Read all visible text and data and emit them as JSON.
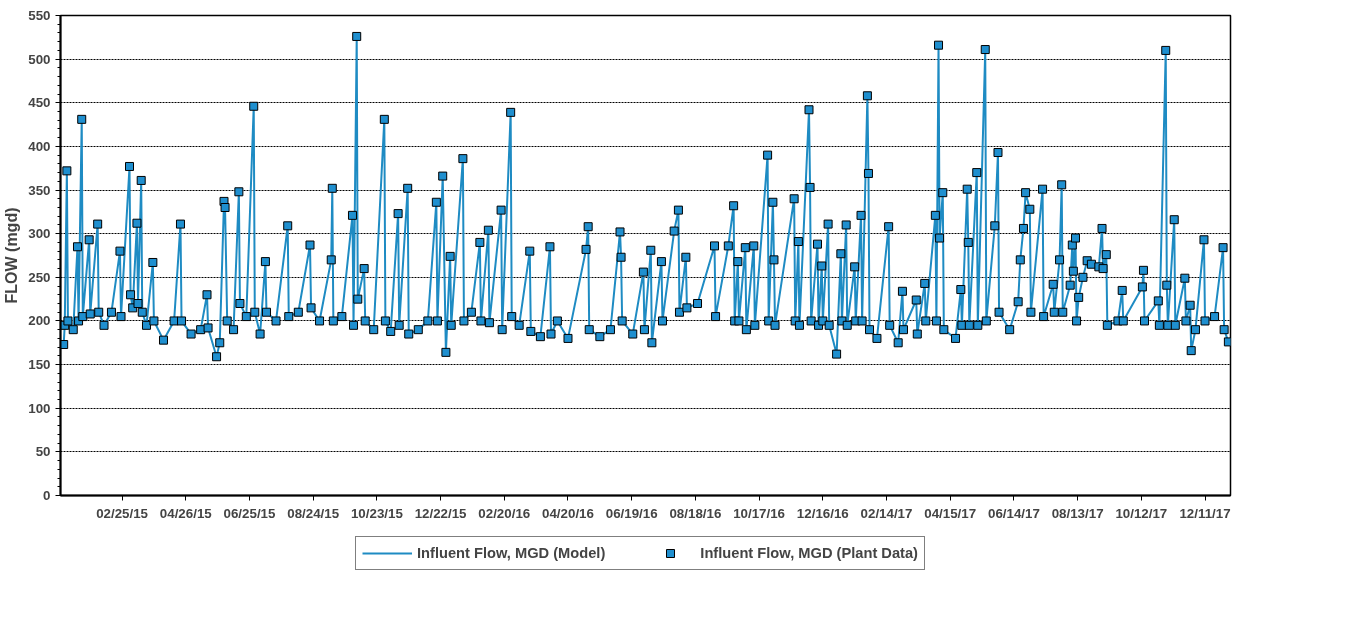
{
  "chart_data": {
    "type": "line",
    "ylabel": "FLOW (mgd)",
    "x": [
      "2015-01-01",
      "2015-01-02",
      "2015-01-04",
      "2015-01-05",
      "2015-01-10",
      "2015-01-14",
      "2015-01-15",
      "2015-01-18",
      "2015-01-19",
      "2015-01-25",
      "2015-01-26",
      "2015-02-02",
      "2015-02-03",
      "2015-02-08",
      "2015-02-15",
      "2015-02-23",
      "2015-02-24",
      "2015-03-04",
      "2015-03-05",
      "2015-03-07",
      "2015-03-11",
      "2015-03-12",
      "2015-03-15",
      "2015-03-16",
      "2015-03-20",
      "2015-03-26",
      "2015-03-27",
      "2015-04-05",
      "2015-04-15",
      "2015-04-21",
      "2015-04-22",
      "2015-05-01",
      "2015-05-10",
      "2015-05-16",
      "2015-05-17",
      "2015-05-25",
      "2015-05-28",
      "2015-06-01",
      "2015-06-02",
      "2015-06-04",
      "2015-06-10",
      "2015-06-15",
      "2015-06-16",
      "2015-06-22",
      "2015-06-29",
      "2015-06-30",
      "2015-07-05",
      "2015-07-10",
      "2015-07-11",
      "2015-07-20",
      "2015-07-31",
      "2015-08-01",
      "2015-08-10",
      "2015-08-21",
      "2015-08-22",
      "2015-08-30",
      "2015-09-10",
      "2015-09-11",
      "2015-09-12",
      "2015-09-20",
      "2015-09-30",
      "2015-10-01",
      "2015-10-04",
      "2015-10-05",
      "2015-10-11",
      "2015-10-12",
      "2015-10-20",
      "2015-10-30",
      "2015-10-31",
      "2015-11-05",
      "2015-11-12",
      "2015-11-13",
      "2015-11-21",
      "2015-11-22",
      "2015-12-01",
      "2015-12-10",
      "2015-12-18",
      "2015-12-19",
      "2015-12-24",
      "2015-12-27",
      "2015-12-31",
      "2016-01-01",
      "2016-01-12",
      "2016-01-13",
      "2016-01-20",
      "2016-01-28",
      "2016-01-29",
      "2016-02-05",
      "2016-02-06",
      "2016-02-17",
      "2016-02-18",
      "2016-02-26",
      "2016-02-27",
      "2016-03-05",
      "2016-03-15",
      "2016-03-16",
      "2016-03-25",
      "2016-04-03",
      "2016-04-04",
      "2016-04-10",
      "2016-04-20",
      "2016-05-07",
      "2016-05-09",
      "2016-05-10",
      "2016-05-20",
      "2016-05-30",
      "2016-06-08",
      "2016-06-09",
      "2016-06-10",
      "2016-06-20",
      "2016-06-30",
      "2016-07-01",
      "2016-07-07",
      "2016-07-08",
      "2016-07-17",
      "2016-07-18",
      "2016-07-29",
      "2016-08-02",
      "2016-08-03",
      "2016-08-09",
      "2016-08-10",
      "2016-08-20",
      "2016-09-05",
      "2016-09-06",
      "2016-09-18",
      "2016-09-23",
      "2016-09-24",
      "2016-09-27",
      "2016-09-28",
      "2016-10-04",
      "2016-10-05",
      "2016-10-12",
      "2016-10-13",
      "2016-10-25",
      "2016-10-26",
      "2016-10-30",
      "2016-10-31",
      "2016-11-01",
      "2016-11-19",
      "2016-11-20",
      "2016-11-23",
      "2016-11-24",
      "2016-12-03",
      "2016-12-04",
      "2016-12-05",
      "2016-12-11",
      "2016-12-12",
      "2016-12-15",
      "2016-12-16",
      "2016-12-21",
      "2016-12-22",
      "2016-12-29",
      "2017-01-02",
      "2017-01-03",
      "2017-01-07",
      "2017-01-08",
      "2017-01-15",
      "2017-01-16",
      "2017-01-21",
      "2017-01-22",
      "2017-01-27",
      "2017-01-28",
      "2017-01-29",
      "2017-02-05",
      "2017-02-16",
      "2017-02-17",
      "2017-02-25",
      "2017-03-01",
      "2017-03-02",
      "2017-03-14",
      "2017-03-15",
      "2017-03-22",
      "2017-03-23",
      "2017-04-01",
      "2017-04-02",
      "2017-04-04",
      "2017-04-05",
      "2017-04-08",
      "2017-04-09",
      "2017-04-20",
      "2017-04-25",
      "2017-04-26",
      "2017-05-01",
      "2017-05-02",
      "2017-05-03",
      "2017-05-10",
      "2017-05-11",
      "2017-05-18",
      "2017-05-19",
      "2017-05-27",
      "2017-05-30",
      "2017-05-31",
      "2017-06-10",
      "2017-06-18",
      "2017-06-20",
      "2017-06-23",
      "2017-06-25",
      "2017-06-29",
      "2017-06-30",
      "2017-07-11",
      "2017-07-12",
      "2017-07-21",
      "2017-07-22",
      "2017-07-27",
      "2017-07-29",
      "2017-07-30",
      "2017-08-06",
      "2017-08-08",
      "2017-08-09",
      "2017-08-11",
      "2017-08-12",
      "2017-08-14",
      "2017-08-18",
      "2017-08-22",
      "2017-08-26",
      "2017-09-02",
      "2017-09-05",
      "2017-09-06",
      "2017-09-09",
      "2017-09-10",
      "2017-09-20",
      "2017-09-24",
      "2017-09-25",
      "2017-10-13",
      "2017-10-14",
      "2017-10-15",
      "2017-10-28",
      "2017-10-29",
      "2017-11-04",
      "2017-11-05",
      "2017-11-06",
      "2017-11-12",
      "2017-11-13",
      "2017-11-22",
      "2017-11-23",
      "2017-11-27",
      "2017-11-28",
      "2017-12-02",
      "2017-12-10",
      "2017-12-11",
      "2017-12-20",
      "2017-12-28",
      "2017-12-29",
      "2018-01-02"
    ],
    "series": [
      {
        "name": "Influent Flow, MGD (Model)",
        "type": "line",
        "color": "#1e8bc3",
        "values": [
          173,
          195,
          372,
          200,
          190,
          285,
          200,
          431,
          205,
          293,
          208,
          311,
          210,
          195,
          210,
          280,
          205,
          377,
          230,
          215,
          312,
          220,
          361,
          210,
          195,
          267,
          200,
          178,
          200,
          311,
          200,
          185,
          190,
          230,
          192,
          159,
          175,
          337,
          330,
          200,
          190,
          348,
          220,
          205,
          446,
          210,
          185,
          268,
          210,
          200,
          309,
          205,
          210,
          287,
          215,
          200,
          270,
          352,
          200,
          205,
          321,
          195,
          526,
          225,
          260,
          200,
          190,
          431,
          200,
          188,
          323,
          195,
          352,
          185,
          190,
          200,
          336,
          200,
          366,
          164,
          274,
          195,
          386,
          200,
          210,
          290,
          200,
          304,
          198,
          327,
          190,
          439,
          205,
          195,
          280,
          188,
          182,
          285,
          185,
          200,
          180,
          282,
          308,
          190,
          182,
          190,
          302,
          273,
          200,
          185,
          256,
          190,
          281,
          175,
          268,
          200,
          303,
          327,
          210,
          273,
          215,
          220,
          286,
          205,
          286,
          332,
          200,
          268,
          200,
          284,
          190,
          286,
          195,
          390,
          200,
          336,
          270,
          195,
          340,
          200,
          291,
          195,
          442,
          353,
          200,
          288,
          195,
          263,
          200,
          311,
          195,
          162,
          277,
          200,
          310,
          195,
          262,
          200,
          321,
          200,
          458,
          369,
          190,
          180,
          308,
          195,
          175,
          234,
          190,
          224,
          185,
          243,
          200,
          321,
          200,
          516,
          295,
          347,
          190,
          180,
          236,
          195,
          351,
          290,
          195,
          370,
          195,
          511,
          200,
          309,
          393,
          210,
          190,
          222,
          270,
          306,
          347,
          328,
          210,
          351,
          205,
          242,
          210,
          270,
          356,
          210,
          241,
          287,
          257,
          295,
          200,
          227,
          250,
          269,
          265,
          262,
          306,
          260,
          276,
          195,
          200,
          235,
          200,
          239,
          258,
          200,
          223,
          195,
          510,
          241,
          195,
          316,
          195,
          249,
          200,
          218,
          166,
          190,
          293,
          200,
          205,
          284,
          190,
          176
        ]
      },
      {
        "name": "Influent Flow, MGD (Plant Data)",
        "type": "scatter",
        "marker": "square",
        "color": "#1f8fcf",
        "values": [
          173,
          195,
          372,
          200,
          190,
          285,
          200,
          431,
          205,
          293,
          208,
          311,
          210,
          195,
          210,
          280,
          205,
          377,
          230,
          215,
          312,
          220,
          361,
          210,
          195,
          267,
          200,
          178,
          200,
          311,
          200,
          185,
          190,
          230,
          192,
          159,
          175,
          337,
          330,
          200,
          190,
          348,
          220,
          205,
          446,
          210,
          185,
          268,
          210,
          200,
          309,
          205,
          210,
          287,
          215,
          200,
          270,
          352,
          200,
          205,
          321,
          195,
          526,
          225,
          260,
          200,
          190,
          431,
          200,
          188,
          323,
          195,
          352,
          185,
          190,
          200,
          336,
          200,
          366,
          164,
          274,
          195,
          386,
          200,
          210,
          290,
          200,
          304,
          198,
          327,
          190,
          439,
          205,
          195,
          280,
          188,
          182,
          285,
          185,
          200,
          180,
          282,
          308,
          190,
          182,
          190,
          302,
          273,
          200,
          185,
          256,
          190,
          281,
          175,
          268,
          200,
          303,
          327,
          210,
          273,
          215,
          220,
          286,
          205,
          286,
          332,
          200,
          268,
          200,
          284,
          190,
          286,
          195,
          390,
          200,
          336,
          270,
          195,
          340,
          200,
          291,
          195,
          442,
          353,
          200,
          288,
          195,
          263,
          200,
          311,
          195,
          162,
          277,
          200,
          310,
          195,
          262,
          200,
          321,
          200,
          458,
          369,
          190,
          180,
          308,
          195,
          175,
          234,
          190,
          224,
          185,
          243,
          200,
          321,
          200,
          516,
          295,
          347,
          190,
          180,
          236,
          195,
          351,
          290,
          195,
          370,
          195,
          511,
          200,
          309,
          393,
          210,
          190,
          222,
          270,
          306,
          347,
          328,
          210,
          351,
          205,
          242,
          210,
          270,
          356,
          210,
          241,
          287,
          257,
          295,
          200,
          227,
          250,
          269,
          265,
          262,
          306,
          260,
          276,
          195,
          200,
          235,
          200,
          239,
          258,
          200,
          223,
          195,
          510,
          241,
          195,
          316,
          195,
          249,
          200,
          218,
          166,
          190,
          293,
          200,
          205,
          284,
          190,
          176
        ]
      }
    ],
    "xlim": [
      "2014-12-29",
      "2018-01-04"
    ],
    "xticks": [
      {
        "value": "2015-02-25",
        "label": "02/25/15"
      },
      {
        "value": "2015-04-26",
        "label": "04/26/15"
      },
      {
        "value": "2015-06-25",
        "label": "06/25/15"
      },
      {
        "value": "2015-08-24",
        "label": "08/24/15"
      },
      {
        "value": "2015-10-23",
        "label": "10/23/15"
      },
      {
        "value": "2015-12-22",
        "label": "12/22/15"
      },
      {
        "value": "2016-02-20",
        "label": "02/20/16"
      },
      {
        "value": "2016-04-20",
        "label": "04/20/16"
      },
      {
        "value": "2016-06-19",
        "label": "06/19/16"
      },
      {
        "value": "2016-08-18",
        "label": "08/18/16"
      },
      {
        "value": "2016-10-17",
        "label": "10/17/16"
      },
      {
        "value": "2016-12-16",
        "label": "12/16/16"
      },
      {
        "value": "2017-02-14",
        "label": "02/14/17"
      },
      {
        "value": "2017-04-15",
        "label": "04/15/17"
      },
      {
        "value": "2017-06-14",
        "label": "06/14/17"
      },
      {
        "value": "2017-08-13",
        "label": "08/13/17"
      },
      {
        "value": "2017-10-12",
        "label": "10/12/17"
      },
      {
        "value": "2017-12-11",
        "label": "12/11/17"
      }
    ],
    "ylim": [
      0,
      550
    ],
    "yticks": [
      0,
      50,
      100,
      150,
      200,
      250,
      300,
      350,
      400,
      450,
      500,
      550
    ],
    "grid": "y",
    "legend": "bottom",
    "line_style": "solid"
  }
}
